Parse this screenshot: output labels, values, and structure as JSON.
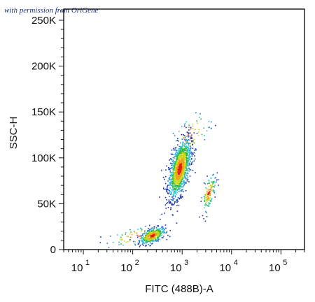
{
  "watermark": "with permission from OriGene",
  "chart_data": {
    "type": "scatter",
    "subtype": "flow cytometry density dot plot",
    "title": "",
    "xlabel": "FITC (488B)-A",
    "ylabel": "SSC-H",
    "x_scale": "log",
    "xlim": [
      4,
      300000
    ],
    "ylim": [
      0,
      262144
    ],
    "x_ticks": [
      {
        "base": "10",
        "exp": "1",
        "value": 10
      },
      {
        "base": "10",
        "exp": "2",
        "value": 100
      },
      {
        "base": "10",
        "exp": "3",
        "value": 1000
      },
      {
        "base": "10",
        "exp": "4",
        "value": 10000
      },
      {
        "base": "10",
        "exp": "5",
        "value": 100000
      }
    ],
    "y_ticks": [
      {
        "label": "0",
        "value": 0
      },
      {
        "label": "50K",
        "value": 50000
      },
      {
        "label": "100K",
        "value": 100000
      },
      {
        "label": "150K",
        "value": 150000
      },
      {
        "label": "200K",
        "value": 200000
      },
      {
        "label": "250K",
        "value": 250000
      }
    ],
    "grid": false,
    "density_colors": [
      "#1530a8",
      "#2a78d4",
      "#2fc4d8",
      "#34b84a",
      "#c9d81c",
      "#f2a018",
      "#e02010"
    ],
    "populations": [
      {
        "x_center": 250,
        "x_spread_log": 0.13,
        "y_center": 15000,
        "y_spread": 4500,
        "count": 450
      },
      {
        "x_center": 900,
        "x_spread_log": 0.11,
        "y_center": 88000,
        "y_spread": 16000,
        "count": 1400
      },
      {
        "x_center": 3500,
        "x_spread_log": 0.07,
        "y_center": 62000,
        "y_spread": 10000,
        "count": 130
      },
      {
        "x_center": 120,
        "x_spread_log": 0.3,
        "y_center": 14000,
        "y_spread": 6000,
        "count": 70
      },
      {
        "x_center": 1500,
        "x_spread_log": 0.2,
        "y_center": 125000,
        "y_spread": 12000,
        "count": 60
      }
    ]
  }
}
